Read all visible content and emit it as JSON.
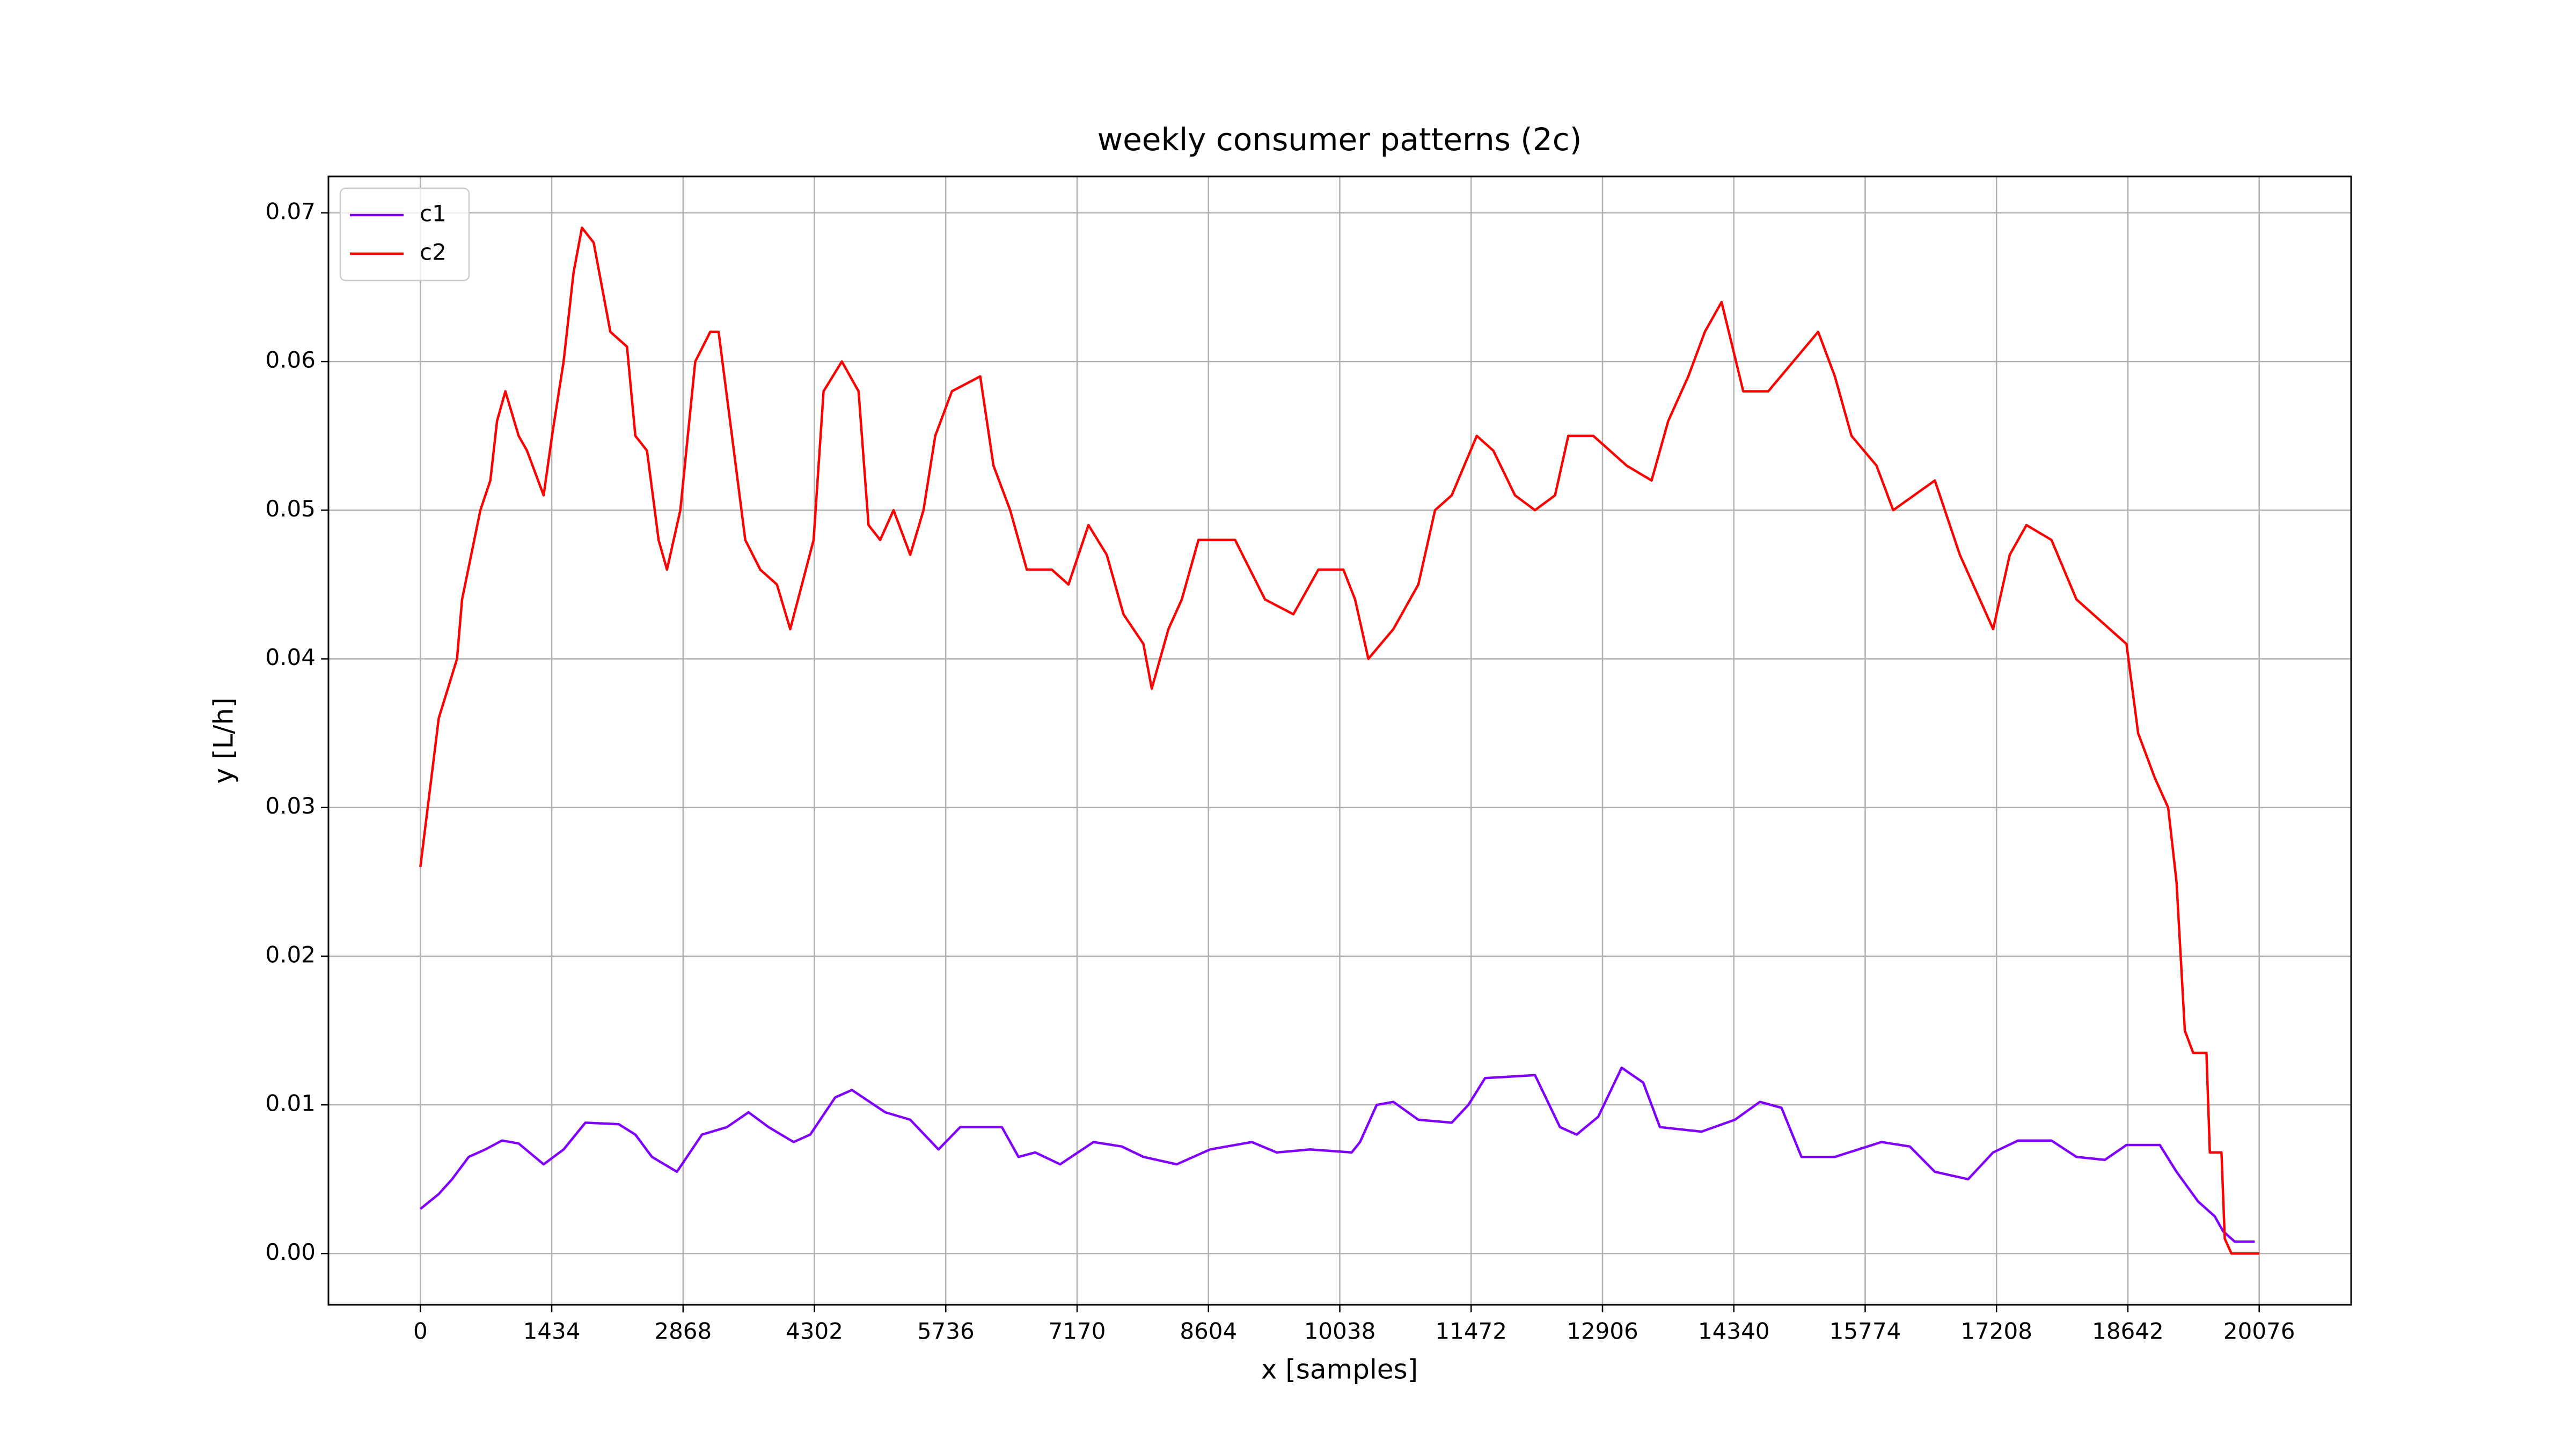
{
  "chart_data": {
    "type": "line",
    "title": "weekly consumer patterns (2c)",
    "x_label": "x [samples]",
    "y_label": "y [L/h]",
    "xlim": [
      -1003.8,
      21079.8
    ],
    "ylim": [
      -0.00345,
      0.07245
    ],
    "xticks": [
      0,
      1434,
      2868,
      4302,
      5736,
      7170,
      8604,
      10038,
      11472,
      12906,
      14340,
      15774,
      17208,
      18642,
      20076
    ],
    "yticks": [
      {
        "value": 0,
        "label": "0.00"
      },
      0.01,
      0.02,
      0.03,
      0.04,
      0.05,
      0.06,
      0.07
    ],
    "grid": true,
    "legend": "upper left",
    "series": [
      {
        "name": "c1",
        "color": "#8000ff",
        "x": [
          0,
          200,
          346,
          528,
          709,
          891,
          1073,
          1346,
          1564,
          1801,
          2165,
          2347,
          2528,
          2801,
          3074,
          3347,
          3583,
          3802,
          4075,
          4256,
          4529,
          4711,
          5075,
          5348,
          5657,
          5894,
          6349,
          6530,
          6712,
          6985,
          7349,
          7658,
          7894,
          8258,
          8622,
          9077,
          9350,
          9713,
          10168,
          10259,
          10441,
          10623,
          10896,
          11260,
          11442,
          11624,
          12169,
          12442,
          12624,
          12860,
          13115,
          13351,
          13533,
          13988,
          14352,
          14625,
          14861,
          15079,
          15443,
          15952,
          16262,
          16535,
          16898,
          17171,
          17444,
          17808,
          18081,
          18391,
          18627,
          18991,
          19173,
          19409,
          19591,
          19682,
          19809,
          20027
        ],
        "values": [
          0.003,
          0.004,
          0.005,
          0.0065,
          0.007,
          0.0076,
          0.0074,
          0.006,
          0.007,
          0.0088,
          0.0087,
          0.008,
          0.0065,
          0.0055,
          0.008,
          0.0085,
          0.0095,
          0.0085,
          0.0075,
          0.008,
          0.0105,
          0.011,
          0.0095,
          0.009,
          0.007,
          0.0085,
          0.0085,
          0.0065,
          0.0068,
          0.006,
          0.0075,
          0.0072,
          0.0065,
          0.006,
          0.007,
          0.0075,
          0.0068,
          0.007,
          0.0068,
          0.0075,
          0.01,
          0.0102,
          0.009,
          0.0088,
          0.01,
          0.0118,
          0.012,
          0.0085,
          0.008,
          0.0092,
          0.0125,
          0.0115,
          0.0085,
          0.0082,
          0.009,
          0.0102,
          0.0098,
          0.0065,
          0.0065,
          0.0075,
          0.0072,
          0.0055,
          0.005,
          0.0068,
          0.0076,
          0.0076,
          0.0065,
          0.0063,
          0.0073,
          0.0073,
          0.0055,
          0.0035,
          0.0025,
          0.0015,
          0.0008,
          0.0008
        ]
      },
      {
        "name": "c2",
        "color": "#ff0000",
        "x": [
          0,
          200,
          400,
          455,
          655,
          764,
          837,
          928,
          1073,
          1164,
          1346,
          1437,
          1564,
          1673,
          1764,
          1892,
          2074,
          2256,
          2347,
          2474,
          2601,
          2692,
          2838,
          3001,
          3165,
          3256,
          3402,
          3547,
          3711,
          3893,
          4038,
          4166,
          4293,
          4402,
          4602,
          4784,
          4893,
          5020,
          5166,
          5348,
          5493,
          5621,
          5803,
          6112,
          6257,
          6439,
          6621,
          6894,
          7076,
          7294,
          7494,
          7676,
          7894,
          7985,
          8167,
          8313,
          8495,
          8895,
          9222,
          9531,
          9804,
          10077,
          10205,
          10350,
          10623,
          10896,
          11078,
          11260,
          11533,
          11715,
          11951,
          12169,
          12388,
          12533,
          12806,
          12988,
          13170,
          13442,
          13624,
          13843,
          14024,
          14206,
          14443,
          14716,
          14989,
          15261,
          15443,
          15625,
          15898,
          16080,
          16535,
          16808,
          17171,
          17353,
          17535,
          17808,
          18081,
          18445,
          18627,
          18754,
          18936,
          19082,
          19173,
          19264,
          19355,
          19500,
          19537,
          19664,
          19700,
          19773,
          20076
        ],
        "values": [
          0.026,
          0.036,
          0.04,
          0.044,
          0.05,
          0.052,
          0.056,
          0.058,
          0.055,
          0.054,
          0.051,
          0.055,
          0.06,
          0.066,
          0.069,
          0.068,
          0.062,
          0.061,
          0.055,
          0.054,
          0.048,
          0.046,
          0.05,
          0.06,
          0.062,
          0.062,
          0.055,
          0.048,
          0.046,
          0.045,
          0.042,
          0.045,
          0.048,
          0.058,
          0.06,
          0.058,
          0.049,
          0.048,
          0.05,
          0.047,
          0.05,
          0.055,
          0.058,
          0.059,
          0.053,
          0.05,
          0.046,
          0.046,
          0.045,
          0.049,
          0.047,
          0.043,
          0.041,
          0.038,
          0.042,
          0.044,
          0.048,
          0.048,
          0.044,
          0.043,
          0.046,
          0.046,
          0.044,
          0.04,
          0.042,
          0.045,
          0.05,
          0.051,
          0.055,
          0.054,
          0.051,
          0.05,
          0.051,
          0.055,
          0.055,
          0.054,
          0.053,
          0.052,
          0.056,
          0.059,
          0.062,
          0.064,
          0.058,
          0.058,
          0.06,
          0.062,
          0.059,
          0.055,
          0.053,
          0.05,
          0.052,
          0.047,
          0.042,
          0.047,
          0.049,
          0.048,
          0.044,
          0.042,
          0.041,
          0.035,
          0.032,
          0.03,
          0.025,
          0.015,
          0.0135,
          0.0135,
          0.0068,
          0.0068,
          0.001,
          0,
          0
        ]
      }
    ]
  }
}
